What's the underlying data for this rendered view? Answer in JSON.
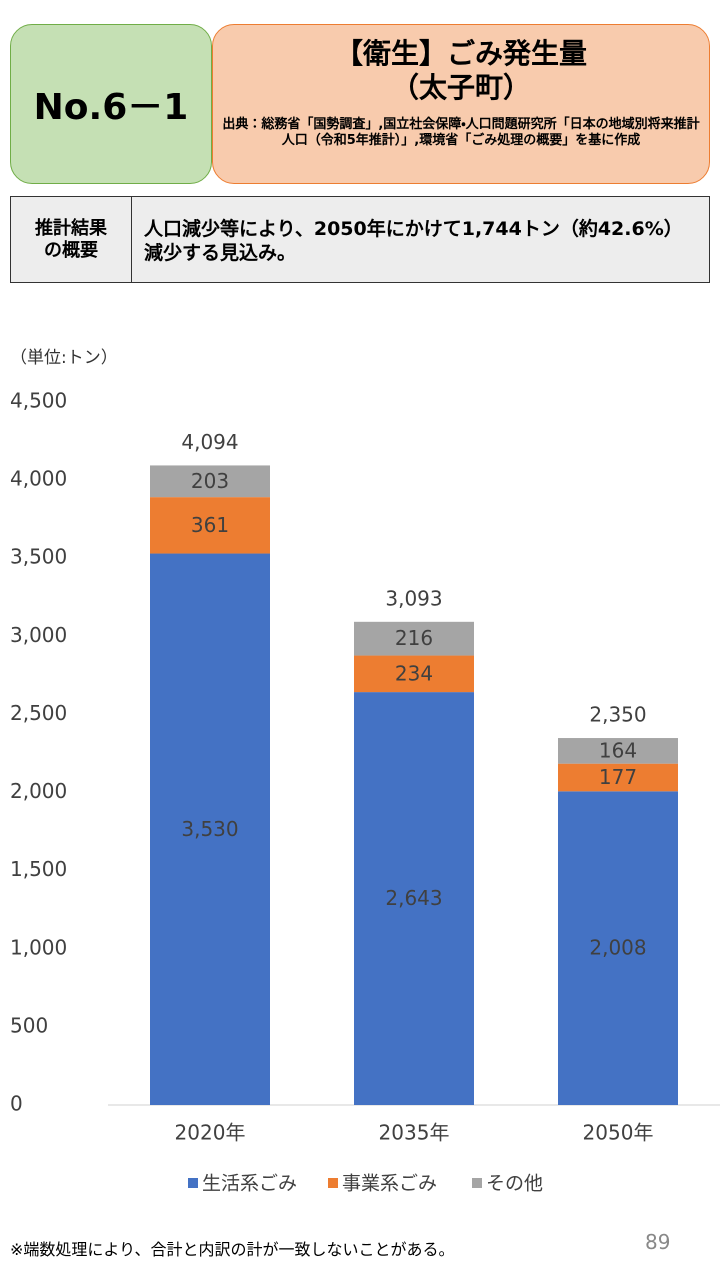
{
  "header": {
    "number": "No.6－1",
    "title": "【衛生】ごみ発生量",
    "subtitle": "（太子町）",
    "source": "出典：総務省「国勢調査」,国立社会保障・人口問題研究所「日本の地域別将来推計人口（令和5年推計）」,環境省「ごみ処理の概要」を基に作成"
  },
  "summary": {
    "label_lines": [
      "推計結果",
      "の概要"
    ],
    "text": "人口減少等により、2050年にかけて1,744トン（約42.6%）減少する見込み。"
  },
  "chart_data": {
    "type": "stacked_bar",
    "unit": "（単位:トン）",
    "categories": [
      "2020年",
      "2035年",
      "2050年"
    ],
    "series": [
      {
        "name": "生活系ごみ",
        "color": "#4472c4",
        "values": [
          3530,
          2643,
          2008
        ],
        "value_labels": [
          "3,530",
          "2,643",
          "2,008"
        ]
      },
      {
        "name": "事業系ごみ",
        "color": "#ed7d31",
        "values": [
          361,
          234,
          177
        ]
      },
      {
        "name": "その他",
        "color": "#a5a5a5",
        "values": [
          203,
          216,
          164
        ]
      }
    ],
    "totals": [
      4094,
      3093,
      2350
    ],
    "total_labels": [
      "4,094",
      "3,093",
      "2,350"
    ],
    "ylim": [
      0,
      4500
    ],
    "yticks": [
      0,
      500,
      {
        "value": 1000,
        "label": "1,000"
      },
      {
        "value": 1500,
        "label": "1,500"
      },
      {
        "value": 2000,
        "label": "2,000"
      },
      {
        "value": 2500,
        "label": "2,500"
      },
      {
        "value": 3000,
        "label": "3,000"
      },
      {
        "value": 3500,
        "label": "3,500"
      },
      {
        "value": 4000,
        "label": "4,000"
      },
      {
        "value": 4500,
        "label": "4,500"
      }
    ],
    "legend": "bottom"
  },
  "footnote": "※端数処理により、合計と内訳の計が一致しないことがある。",
  "page_number": "89"
}
